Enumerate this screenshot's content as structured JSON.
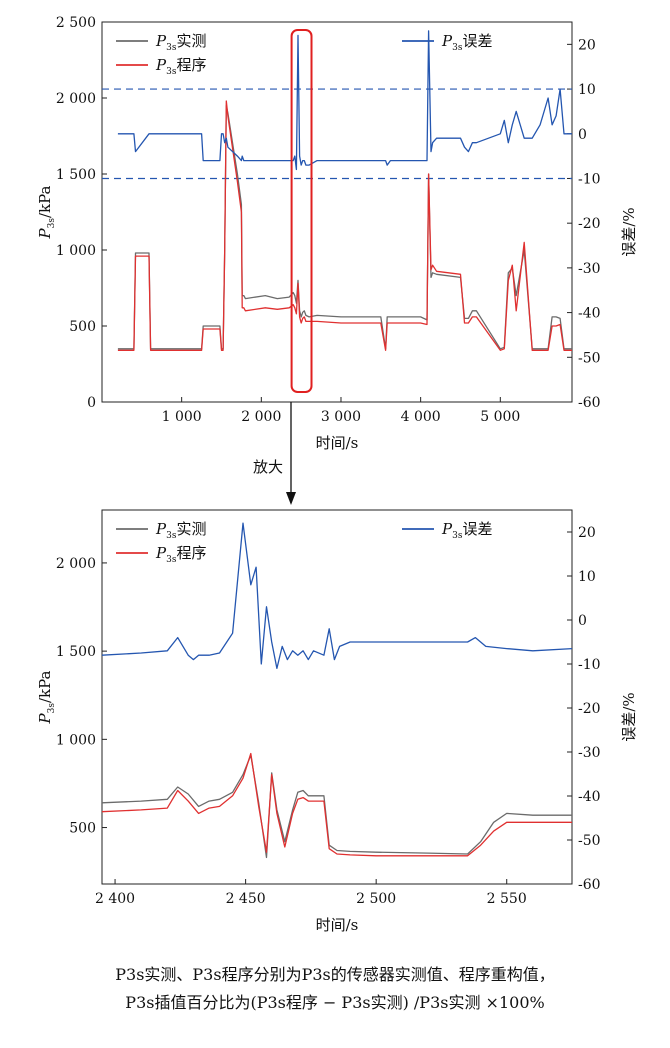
{
  "caption": {
    "line1": "P3s实测、P3s程序分别为P3s的传感器实测值、程序重构值，",
    "line2": "P3s插值百分比为(P3s程序 − P3s实测) /P3s实测 ×100%"
  },
  "zoom_label": "放大",
  "chart_data": [
    {
      "id": "top",
      "type": "line",
      "title": "",
      "xlabel": "时间/s",
      "ylabel": "P3s/kPa",
      "y2label": "误差/%",
      "xlim": [
        0,
        5900
      ],
      "ylim": [
        0,
        2500
      ],
      "y2lim": [
        -60,
        25
      ],
      "x_ticks": [
        1000,
        2000,
        3000,
        4000,
        5000
      ],
      "x_tick_labels": [
        "1 000",
        "2 000",
        "3 000",
        "4 000",
        "5 000"
      ],
      "y_ticks": [
        0,
        500,
        1000,
        1500,
        2000,
        2500
      ],
      "y_tick_labels": [
        "0",
        "500",
        "1 000",
        "1 500",
        "2 000",
        "2 500"
      ],
      "y2_ticks": [
        -60,
        -50,
        -40,
        -30,
        -20,
        -10,
        0,
        10,
        20
      ],
      "y2_tick_labels": [
        "-60",
        "-50",
        "-40",
        "-30",
        "-20",
        "-10",
        "0",
        "10",
        "20"
      ],
      "reference_lines_y2": [
        10,
        -10
      ],
      "highlight_box_x": [
        2380,
        2630
      ],
      "legend": [
        {
          "name": "P3s实测",
          "color": "#6b6b6b",
          "placement": "top-left"
        },
        {
          "name": "P3s程序",
          "color": "#e03030",
          "placement": "top-left"
        },
        {
          "name": "P3s误差",
          "color": "#2456b0",
          "placement": "top-right"
        }
      ],
      "series": [
        {
          "name": "P3s实测",
          "axis": "left",
          "color": "#6b6b6b",
          "x": [
            200,
            400,
            420,
            590,
            610,
            1250,
            1270,
            1300,
            1320,
            1480,
            1500,
            1520,
            1540,
            1560,
            1580,
            1700,
            1750,
            1760,
            1780,
            1800,
            2050,
            2200,
            2350,
            2400,
            2420,
            2440,
            2460,
            2480,
            2500,
            2520,
            2540,
            2560,
            2600,
            2700,
            3000,
            3500,
            3560,
            3580,
            3620,
            3700,
            4000,
            4080,
            4100,
            4130,
            4150,
            4200,
            4500,
            4550,
            4600,
            4650,
            4700,
            5000,
            5050,
            5100,
            5150,
            5200,
            5300,
            5400,
            5500,
            5600,
            5650,
            5700,
            5750,
            5800,
            5900
          ],
          "y": [
            350,
            350,
            980,
            980,
            350,
            350,
            500,
            500,
            500,
            500,
            350,
            350,
            1000,
            1950,
            1900,
            1500,
            1300,
            700,
            700,
            680,
            700,
            680,
            690,
            720,
            700,
            650,
            800,
            600,
            560,
            590,
            600,
            570,
            560,
            570,
            560,
            560,
            350,
            560,
            560,
            560,
            560,
            540,
            1500,
            820,
            850,
            840,
            820,
            550,
            550,
            600,
            600,
            350,
            360,
            850,
            880,
            700,
            1000,
            350,
            350,
            350,
            560,
            560,
            550,
            350,
            350
          ]
        },
        {
          "name": "P3s程序",
          "axis": "left",
          "color": "#e03030",
          "x": [
            200,
            400,
            420,
            590,
            610,
            1250,
            1270,
            1300,
            1320,
            1480,
            1500,
            1520,
            1540,
            1560,
            1580,
            1700,
            1750,
            1760,
            1780,
            1800,
            2050,
            2200,
            2350,
            2400,
            2420,
            2440,
            2460,
            2480,
            2500,
            2520,
            2540,
            2560,
            2600,
            2700,
            3000,
            3500,
            3560,
            3580,
            3620,
            3700,
            4000,
            4080,
            4100,
            4130,
            4150,
            4200,
            4500,
            4550,
            4600,
            4650,
            4700,
            5000,
            5050,
            5100,
            5150,
            5200,
            5300,
            5400,
            5500,
            5600,
            5650,
            5700,
            5750,
            5800,
            5900
          ],
          "y": [
            340,
            340,
            960,
            960,
            340,
            340,
            480,
            480,
            480,
            480,
            340,
            340,
            1000,
            1980,
            1880,
            1450,
            1250,
            620,
            620,
            600,
            620,
            610,
            620,
            640,
            620,
            580,
            780,
            560,
            520,
            550,
            560,
            530,
            530,
            530,
            520,
            520,
            340,
            520,
            520,
            520,
            520,
            510,
            1500,
            870,
            900,
            860,
            840,
            520,
            520,
            560,
            560,
            340,
            350,
            800,
            900,
            600,
            1050,
            340,
            340,
            340,
            500,
            500,
            510,
            340,
            340
          ]
        },
        {
          "name": "P3s误差",
          "axis": "right",
          "color": "#2456b0",
          "x": [
            200,
            400,
            420,
            590,
            610,
            1250,
            1270,
            1300,
            1320,
            1480,
            1500,
            1520,
            1540,
            1560,
            1580,
            1700,
            1750,
            1760,
            1780,
            1800,
            2050,
            2200,
            2350,
            2400,
            2420,
            2440,
            2460,
            2480,
            2500,
            2520,
            2540,
            2560,
            2600,
            2700,
            3000,
            3500,
            3560,
            3580,
            3620,
            3700,
            4000,
            4080,
            4100,
            4130,
            4150,
            4200,
            4500,
            4550,
            4600,
            4650,
            4700,
            5000,
            5050,
            5100,
            5150,
            5200,
            5300,
            5400,
            5500,
            5600,
            5650,
            5700,
            5750,
            5800,
            5900
          ],
          "y": [
            0,
            0,
            -4,
            0,
            0,
            0,
            -6,
            -6,
            -6,
            -6,
            0,
            0,
            -2,
            -1,
            -3,
            -5,
            -6,
            -5,
            -6,
            -6,
            -6,
            -6,
            -6,
            -6,
            -5,
            -8,
            22,
            -5,
            -7,
            -6,
            -6,
            -7,
            -7,
            -6,
            -6,
            -6,
            -6,
            -7,
            -6,
            -6,
            -6,
            -6,
            23,
            -4,
            -2,
            -1,
            -1,
            -3,
            -4,
            -2,
            -2,
            0,
            3,
            -2,
            2,
            5,
            -1,
            -1,
            2,
            8,
            2,
            4,
            10,
            0,
            0
          ]
        }
      ]
    },
    {
      "id": "zoom",
      "type": "line",
      "title": "",
      "xlabel": "时间/s",
      "ylabel": "P3s/kPa",
      "y2label": "误差/%",
      "xlim": [
        2395,
        2575
      ],
      "ylim": [
        180,
        2300
      ],
      "y2lim": [
        -60,
        25
      ],
      "x_ticks": [
        2400,
        2450,
        2500,
        2550
      ],
      "x_tick_labels": [
        "2 400",
        "2 450",
        "2 500",
        "2 550"
      ],
      "y_ticks": [
        500,
        1000,
        1500,
        2000
      ],
      "y_tick_labels": [
        "500",
        "1 000",
        "1 500",
        "2 000"
      ],
      "y2_ticks": [
        -60,
        -50,
        -40,
        -30,
        -20,
        -10,
        0,
        10,
        20
      ],
      "y2_tick_labels": [
        "-60",
        "-50",
        "-40",
        "-30",
        "-20",
        "-10",
        "0",
        "10",
        "20"
      ],
      "legend": [
        {
          "name": "P3s实测",
          "color": "#6b6b6b",
          "placement": "top-left"
        },
        {
          "name": "P3s程序",
          "color": "#e03030",
          "placement": "top-left"
        },
        {
          "name": "P3s误差",
          "color": "#2456b0",
          "placement": "top-right"
        }
      ],
      "series": [
        {
          "name": "P3s实测",
          "axis": "left",
          "color": "#6b6b6b",
          "x": [
            2395,
            2410,
            2420,
            2424,
            2428,
            2432,
            2436,
            2440,
            2445,
            2449,
            2452,
            2455,
            2458,
            2460,
            2462,
            2465,
            2468,
            2470,
            2472,
            2474,
            2476,
            2480,
            2482,
            2485,
            2490,
            2500,
            2520,
            2535,
            2540,
            2545,
            2550,
            2560,
            2575
          ],
          "y": [
            640,
            650,
            660,
            730,
            690,
            620,
            650,
            660,
            700,
            800,
            910,
            640,
            330,
            810,
            600,
            420,
            600,
            700,
            710,
            680,
            680,
            680,
            400,
            370,
            365,
            360,
            355,
            350,
            420,
            530,
            580,
            570,
            570
          ]
        },
        {
          "name": "P3s程序",
          "axis": "left",
          "color": "#e03030",
          "x": [
            2395,
            2410,
            2420,
            2424,
            2428,
            2432,
            2436,
            2440,
            2445,
            2449,
            2452,
            2455,
            2458,
            2460,
            2462,
            2465,
            2468,
            2470,
            2472,
            2474,
            2476,
            2480,
            2482,
            2485,
            2490,
            2500,
            2520,
            2535,
            2540,
            2545,
            2550,
            2560,
            2575
          ],
          "y": [
            590,
            600,
            610,
            710,
            650,
            580,
            610,
            620,
            680,
            780,
            920,
            620,
            360,
            800,
            580,
            390,
            580,
            660,
            670,
            650,
            650,
            650,
            380,
            350,
            345,
            340,
            340,
            340,
            400,
            480,
            530,
            530,
            530
          ]
        },
        {
          "name": "P3s误差",
          "axis": "right",
          "color": "#2456b0",
          "x": [
            2395,
            2410,
            2420,
            2424,
            2428,
            2430,
            2432,
            2436,
            2440,
            2445,
            2449,
            2452,
            2454,
            2456,
            2458,
            2460,
            2462,
            2464,
            2466,
            2468,
            2470,
            2472,
            2474,
            2476,
            2480,
            2482,
            2484,
            2486,
            2490,
            2500,
            2520,
            2535,
            2538,
            2542,
            2550,
            2560,
            2575
          ],
          "y": [
            -8,
            -7.5,
            -7,
            -4,
            -8,
            -9,
            -8,
            -8,
            -7.5,
            -3,
            22,
            8,
            12,
            -10,
            3,
            -5,
            -11,
            -6,
            -9,
            -7,
            -8,
            -7,
            -9,
            -7,
            -8,
            -2,
            -9,
            -6,
            -5,
            -5,
            -5,
            -5,
            -4,
            -6,
            -6.5,
            -7,
            -6.5
          ]
        }
      ]
    }
  ]
}
